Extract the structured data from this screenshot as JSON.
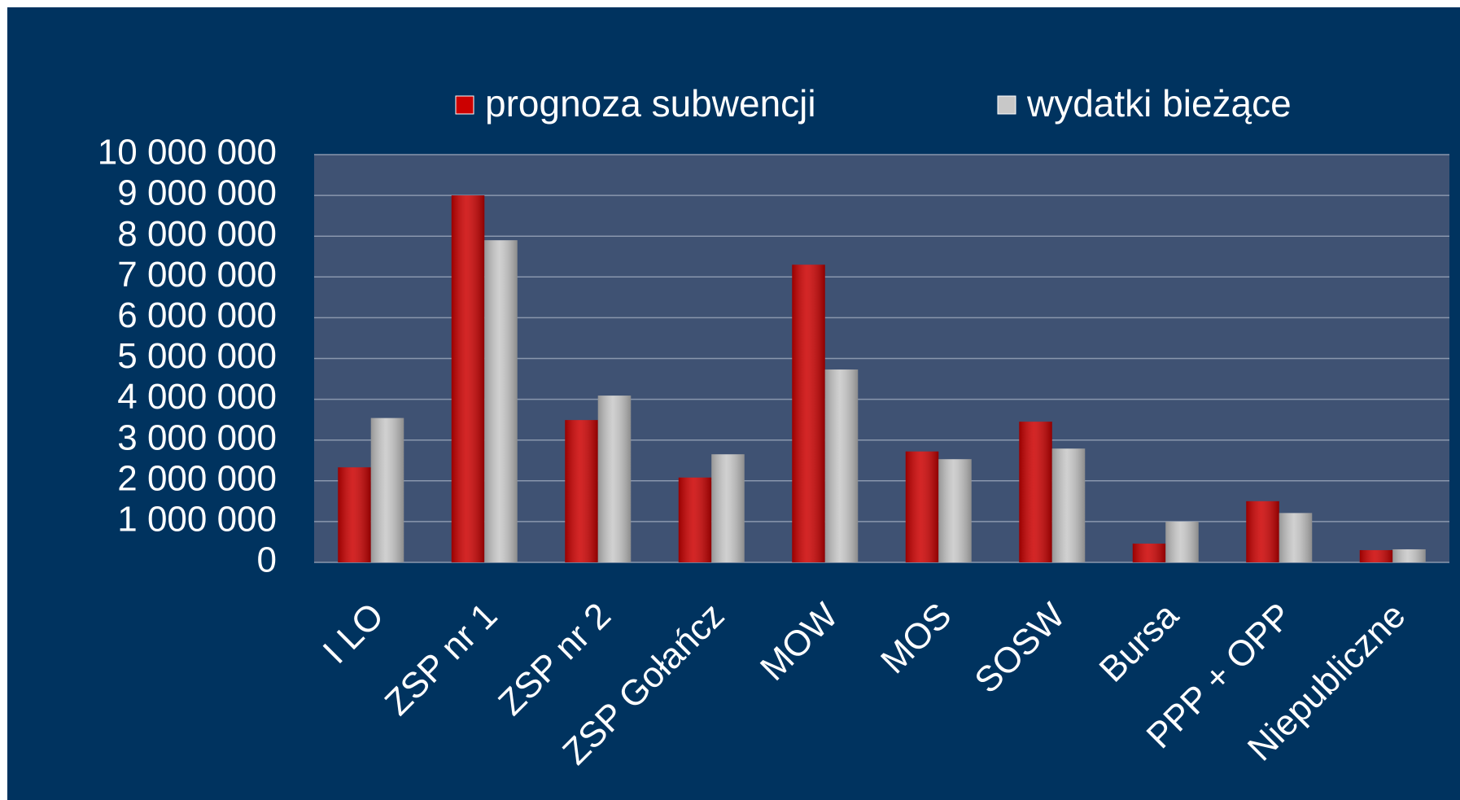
{
  "chart_data": {
    "type": "bar",
    "categories": [
      "I LO",
      "ZSP nr 1",
      "ZSP nr 2",
      "ZSP Gołańcz",
      "MOW",
      "MOS",
      "SOSW",
      "Bursa",
      "PPP + OPP",
      "Niepubliczne"
    ],
    "series": [
      {
        "name": "prognoza subwencji",
        "color": "#cc0000",
        "values": [
          2330000,
          9000000,
          3490000,
          2080000,
          7300000,
          2720000,
          3450000,
          460000,
          1500000,
          300000
        ]
      },
      {
        "name": "wydatki bieżące",
        "color": "#c8c8c8",
        "values": [
          3540000,
          7900000,
          4090000,
          2650000,
          4730000,
          2530000,
          2790000,
          1000000,
          1210000,
          320000
        ]
      }
    ],
    "ylim": [
      0,
      10000000
    ],
    "yticks": [
      0,
      {
        "value": 1000000,
        "label": "1 000 000"
      },
      {
        "value": 2000000,
        "label": "2 000 000"
      },
      {
        "value": 3000000,
        "label": "3 000 000"
      },
      {
        "value": 4000000,
        "label": "4 000 000"
      },
      {
        "value": 5000000,
        "label": "5 000 000"
      },
      {
        "value": 6000000,
        "label": "6 000 000"
      },
      {
        "value": 7000000,
        "label": "7 000 000"
      },
      {
        "value": 8000000,
        "label": "8 000 000"
      },
      {
        "value": 9000000,
        "label": "9 000 000"
      },
      {
        "value": 10000000,
        "label": "10 000 000"
      }
    ],
    "grid": true,
    "legend": "top"
  }
}
